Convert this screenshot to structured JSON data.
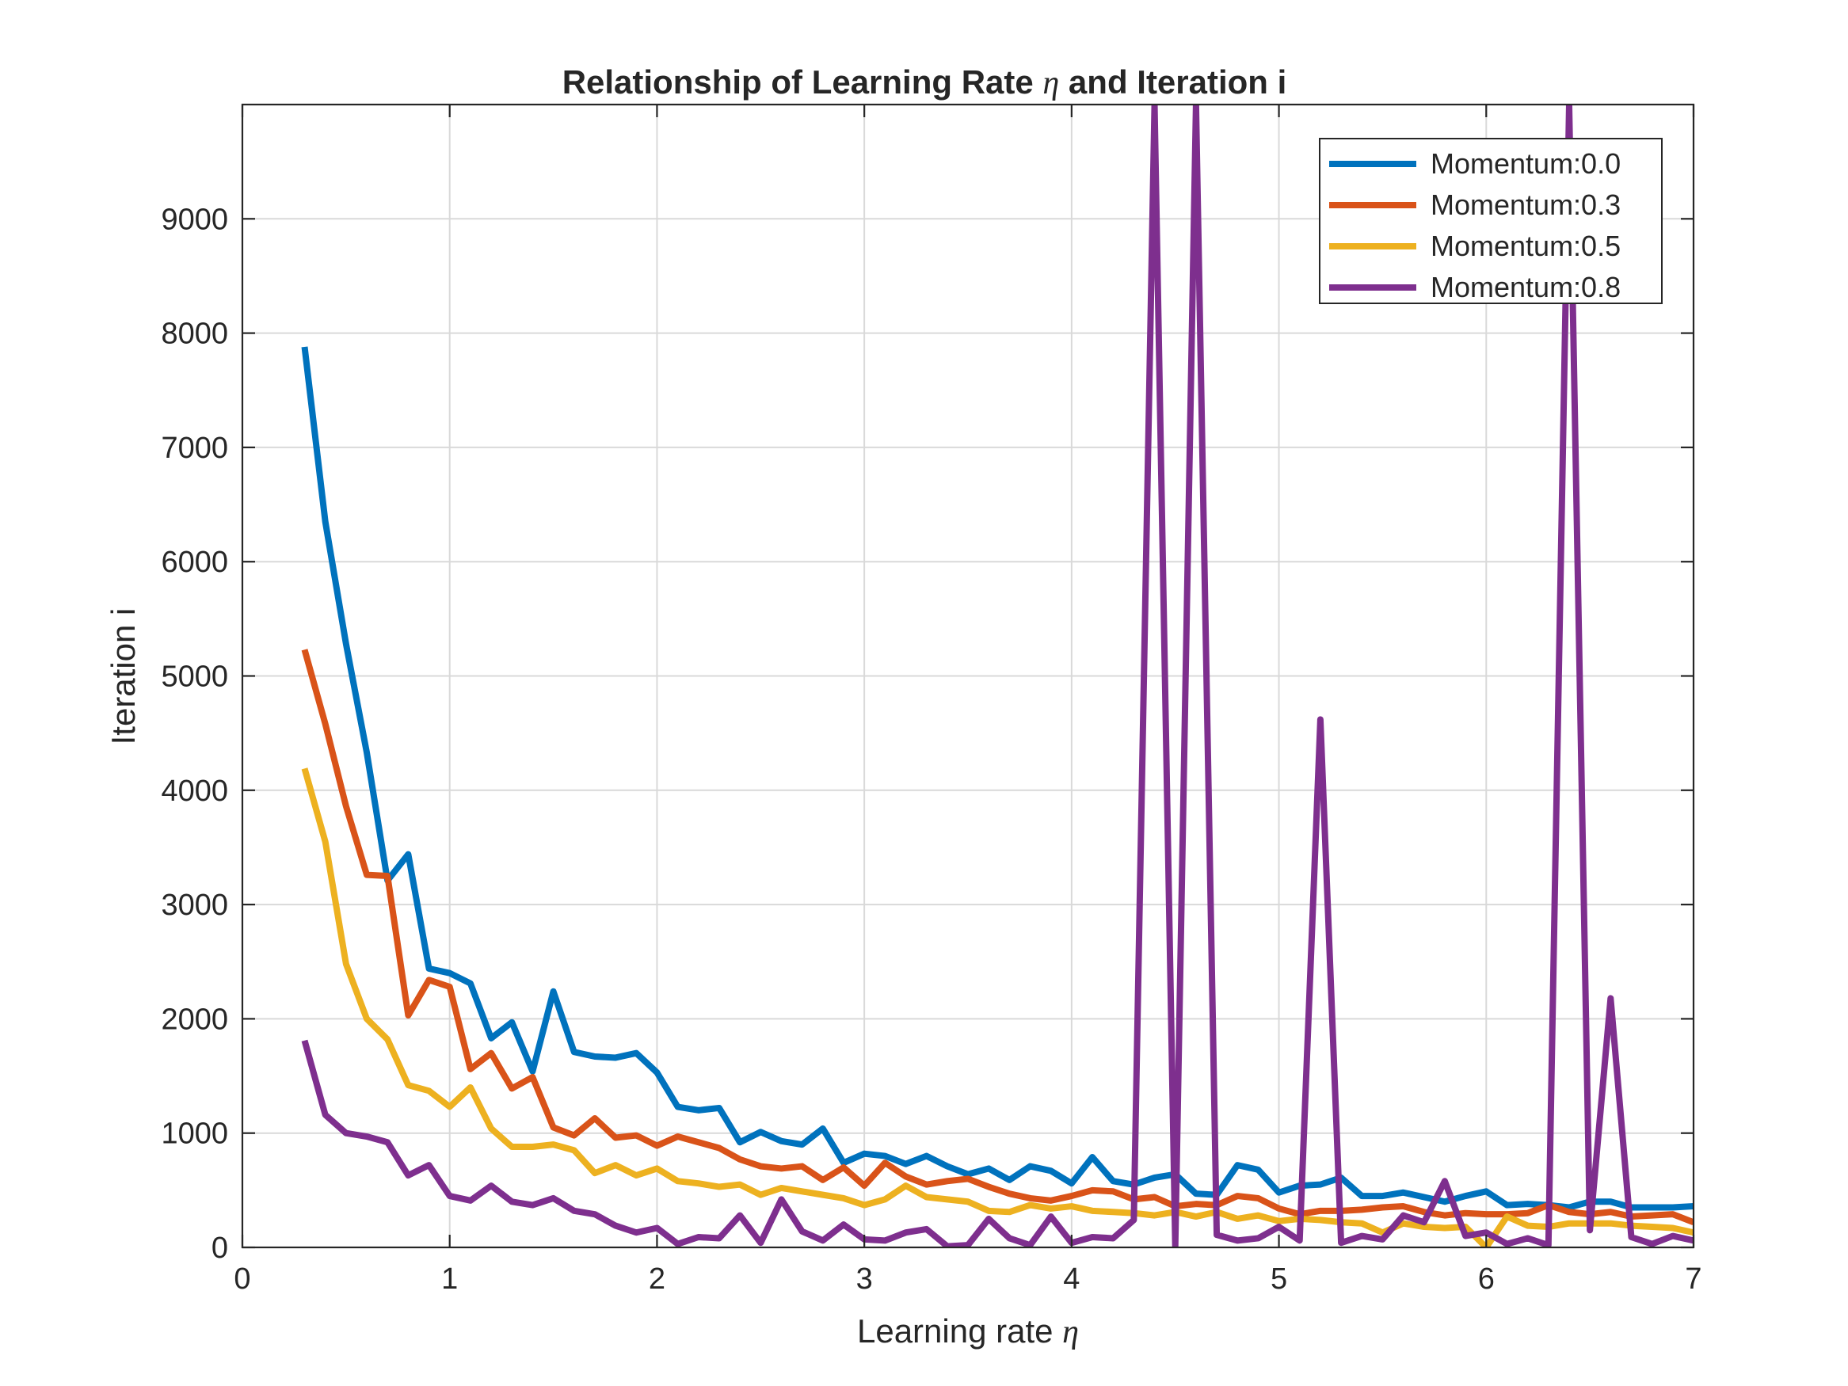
{
  "chart_data": {
    "type": "line",
    "title_prefix": "Relationship of Learning Rate ",
    "title_symbol": "η",
    "title_suffix": " and Iteration i",
    "xlabel_prefix": "Learning rate ",
    "xlabel_symbol": "η",
    "ylabel": "Iteration i",
    "xlim": [
      0,
      7
    ],
    "ylim": [
      0,
      10000
    ],
    "xticks": [
      0,
      1,
      2,
      3,
      4,
      5,
      6,
      7
    ],
    "yticks": [
      0,
      1000,
      2000,
      3000,
      4000,
      5000,
      6000,
      7000,
      8000,
      9000
    ],
    "grid": true,
    "legend_position": "top-right",
    "x": [
      0.3,
      0.4,
      0.5,
      0.6,
      0.7,
      0.8,
      0.9,
      1.0,
      1.1,
      1.2,
      1.3,
      1.4,
      1.5,
      1.6,
      1.7,
      1.8,
      1.9,
      2.0,
      2.1,
      2.2,
      2.3,
      2.4,
      2.5,
      2.6,
      2.7,
      2.8,
      2.9,
      3.0,
      3.1,
      3.2,
      3.3,
      3.4,
      3.5,
      3.6,
      3.7,
      3.8,
      3.9,
      4.0,
      4.1,
      4.2,
      4.3,
      4.4,
      4.5,
      4.6,
      4.7,
      4.8,
      4.9,
      5.0,
      5.1,
      5.2,
      5.3,
      5.4,
      5.5,
      5.6,
      5.7,
      5.8,
      5.9,
      6.0,
      6.1,
      6.2,
      6.3,
      6.4,
      6.5,
      6.6,
      6.7,
      6.8,
      6.9,
      7.0
    ],
    "series": [
      {
        "name": "Momentum:0.0",
        "color": "#0072BD",
        "values": [
          7880,
          6350,
          5280,
          4330,
          3210,
          3440,
          2440,
          2400,
          2310,
          1830,
          1970,
          1540,
          2240,
          1710,
          1670,
          1660,
          1700,
          1530,
          1230,
          1200,
          1220,
          920,
          1010,
          930,
          900,
          1040,
          740,
          820,
          800,
          730,
          800,
          710,
          640,
          690,
          590,
          710,
          670,
          560,
          790,
          580,
          550,
          610,
          640,
          470,
          460,
          720,
          680,
          480,
          540,
          550,
          610,
          450,
          450,
          480,
          440,
          400,
          450,
          490,
          370,
          380,
          370,
          350,
          400,
          400,
          350,
          350,
          350,
          360
        ]
      },
      {
        "name": "Momentum:0.3",
        "color": "#D95319",
        "values": [
          5230,
          4580,
          3860,
          3260,
          3250,
          2030,
          2340,
          2280,
          1560,
          1700,
          1390,
          1490,
          1050,
          980,
          1130,
          960,
          980,
          890,
          970,
          920,
          870,
          770,
          710,
          690,
          710,
          590,
          700,
          540,
          740,
          620,
          550,
          580,
          600,
          530,
          470,
          430,
          410,
          450,
          500,
          490,
          420,
          440,
          360,
          380,
          370,
          450,
          430,
          340,
          290,
          320,
          320,
          330,
          350,
          360,
          310,
          280,
          300,
          290,
          290,
          300,
          370,
          310,
          290,
          310,
          270,
          280,
          290,
          220
        ]
      },
      {
        "name": "Momentum:0.5",
        "color": "#EDB120",
        "values": [
          4190,
          3550,
          2480,
          2000,
          1820,
          1420,
          1370,
          1230,
          1400,
          1040,
          880,
          880,
          900,
          850,
          650,
          720,
          630,
          690,
          580,
          560,
          530,
          550,
          460,
          520,
          490,
          460,
          430,
          370,
          420,
          540,
          440,
          420,
          400,
          320,
          310,
          370,
          340,
          360,
          320,
          310,
          300,
          280,
          310,
          270,
          310,
          250,
          280,
          230,
          250,
          240,
          220,
          210,
          130,
          210,
          180,
          170,
          180,
          0,
          270,
          190,
          180,
          210,
          210,
          210,
          190,
          180,
          170,
          130
        ]
      },
      {
        "name": "Momentum:0.8",
        "color": "#7E2F8E",
        "values": [
          1810,
          1160,
          1000,
          970,
          920,
          630,
          720,
          450,
          410,
          540,
          400,
          370,
          430,
          320,
          290,
          190,
          130,
          170,
          30,
          90,
          80,
          280,
          40,
          420,
          140,
          60,
          200,
          70,
          60,
          130,
          160,
          10,
          20,
          250,
          80,
          20,
          270,
          40,
          90,
          80,
          240,
          10000,
          10,
          10000,
          110,
          60,
          80,
          180,
          60,
          4620,
          40,
          100,
          70,
          280,
          220,
          580,
          100,
          130,
          30,
          80,
          20,
          10000,
          150,
          2180,
          90,
          30,
          100,
          60
        ]
      }
    ]
  }
}
